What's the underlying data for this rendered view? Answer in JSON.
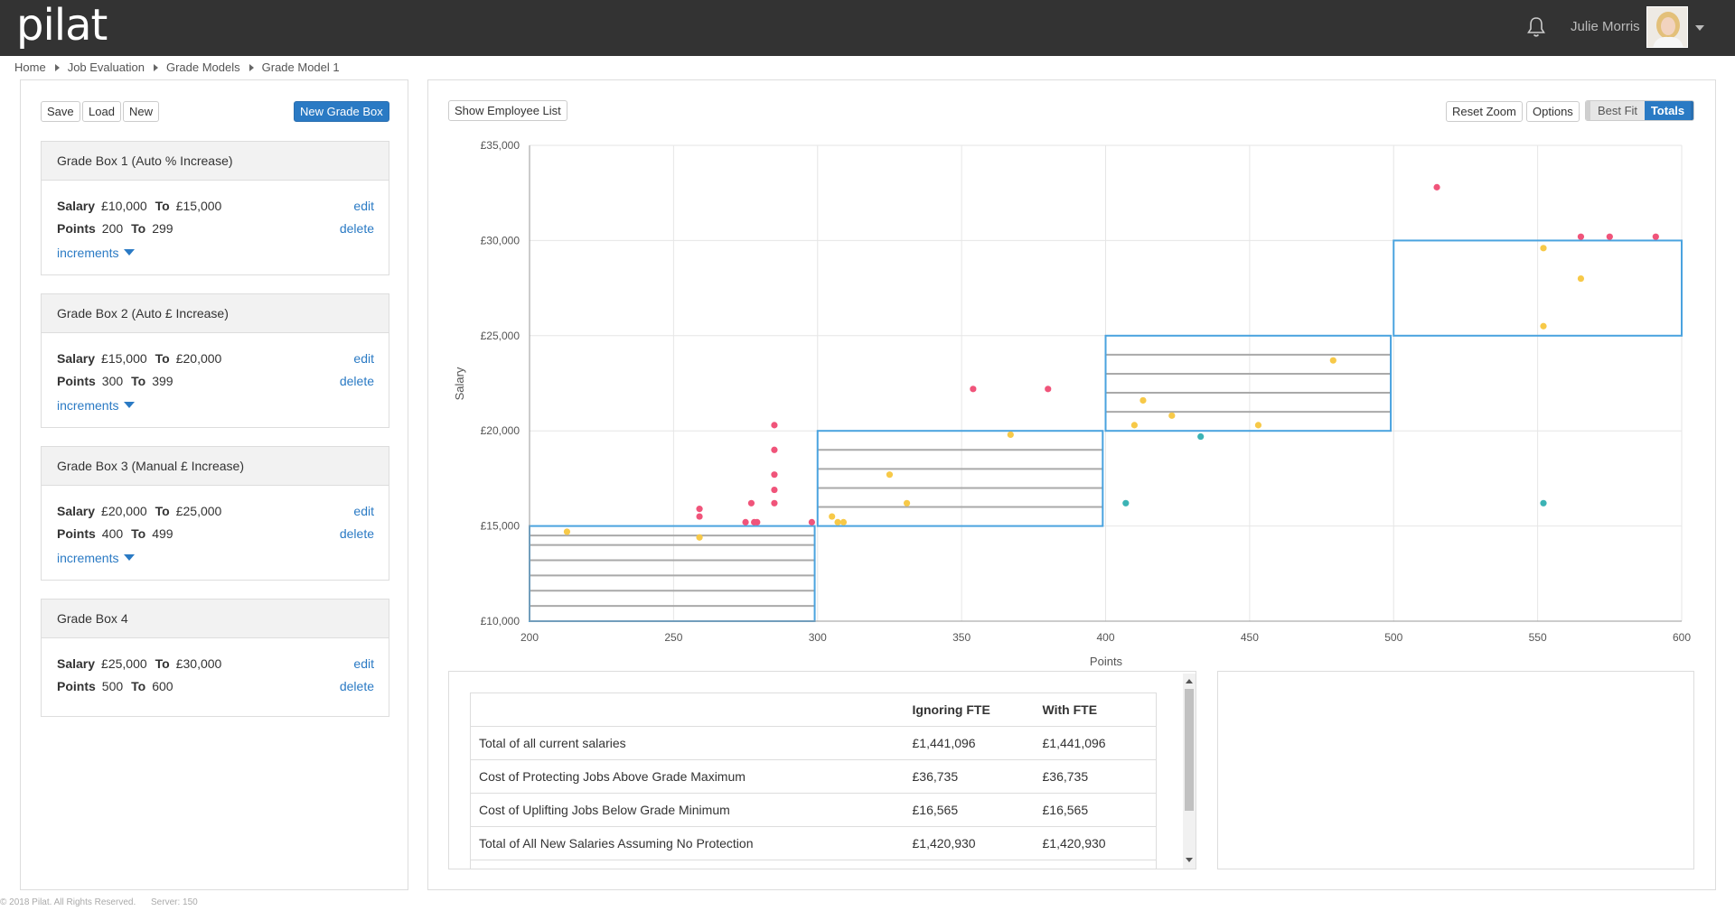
{
  "app": {
    "logo": "pilat"
  },
  "header": {
    "user_name": "Julie Morris",
    "bell_icon": "bell-icon",
    "caret_icon": "caret-down-icon"
  },
  "breadcrumb": [
    "Home",
    "Job Evaluation",
    "Grade Models",
    "Grade Model 1"
  ],
  "left_toolbar": {
    "save": "Save",
    "load": "Load",
    "new": "New",
    "new_grade_box": "New Grade Box"
  },
  "grade_boxes": [
    {
      "title": "Grade Box 1 (Auto % Increase)",
      "salary_from": "£10,000",
      "salary_to": "£15,000",
      "points_from": "200",
      "points_to": "299",
      "has_increments": true
    },
    {
      "title": "Grade Box 2 (Auto £ Increase)",
      "salary_from": "£15,000",
      "salary_to": "£20,000",
      "points_from": "300",
      "points_to": "399",
      "has_increments": true
    },
    {
      "title": "Grade Box 3 (Manual £ Increase)",
      "salary_from": "£20,000",
      "salary_to": "£25,000",
      "points_from": "400",
      "points_to": "499",
      "has_increments": true
    },
    {
      "title": "Grade Box 4",
      "salary_from": "£25,000",
      "salary_to": "£30,000",
      "points_from": "500",
      "points_to": "600",
      "has_increments": false
    }
  ],
  "labels": {
    "salary": "Salary",
    "points": "Points",
    "to": "To",
    "edit": "edit",
    "delete": "delete",
    "increments": "increments"
  },
  "main_toolbar": {
    "show_employee_list": "Show Employee List",
    "reset_zoom": "Reset Zoom",
    "options": "Options",
    "best_fit": "Best Fit",
    "totals": "Totals"
  },
  "colors": {
    "accent": "#2a7ac4",
    "box_stroke": "#4aa3df",
    "pink": "#f0547a",
    "yellow": "#f7c948",
    "teal": "#3bb3b5"
  },
  "chart_data": {
    "type": "scatter",
    "xlabel": "Points",
    "ylabel": "Salary",
    "xlim": [
      200,
      600
    ],
    "ylim": [
      10000,
      35000
    ],
    "x_ticks": [
      "200",
      "250",
      "300",
      "350",
      "400",
      "450",
      "500",
      "550",
      "600"
    ],
    "y_ticks": [
      "£10,000",
      "£15,000",
      "£20,000",
      "£25,000",
      "£30,000",
      "£35,000"
    ],
    "grid": true,
    "grade_boxes": [
      {
        "x": [
          200,
          299
        ],
        "y": [
          10000,
          15000
        ],
        "increments": [
          10000,
          10800,
          11600,
          12400,
          13200,
          14000,
          14500
        ]
      },
      {
        "x": [
          300,
          399
        ],
        "y": [
          15000,
          20000
        ],
        "increments": [
          16000,
          17000,
          18000,
          19000
        ]
      },
      {
        "x": [
          400,
          499
        ],
        "y": [
          20000,
          25000
        ],
        "increments": [
          21000,
          22000,
          23000,
          24000
        ]
      },
      {
        "x": [
          500,
          600
        ],
        "y": [
          25000,
          30000
        ],
        "increments": []
      }
    ],
    "series": [
      {
        "color": "#f0547a",
        "points": [
          [
            259,
            15500
          ],
          [
            259,
            15900
          ],
          [
            275,
            15200
          ],
          [
            277,
            16200
          ],
          [
            278,
            15200
          ],
          [
            279,
            15200
          ],
          [
            285,
            16200
          ],
          [
            285,
            16900
          ],
          [
            285,
            17700
          ],
          [
            285,
            19000
          ],
          [
            285,
            20300
          ],
          [
            298,
            15200
          ],
          [
            354,
            22200
          ],
          [
            380,
            22200
          ],
          [
            515,
            32800
          ],
          [
            565,
            30200
          ],
          [
            575,
            30200
          ],
          [
            591,
            30200
          ]
        ]
      },
      {
        "color": "#f7c948",
        "points": [
          [
            213,
            14700
          ],
          [
            259,
            14400
          ],
          [
            305,
            15500
          ],
          [
            307,
            15200
          ],
          [
            309,
            15200
          ],
          [
            325,
            17700
          ],
          [
            331,
            16200
          ],
          [
            367,
            19800
          ],
          [
            410,
            20300
          ],
          [
            413,
            21600
          ],
          [
            423,
            20800
          ],
          [
            453,
            20300
          ],
          [
            479,
            23700
          ],
          [
            552,
            29600
          ],
          [
            552,
            25500
          ],
          [
            565,
            28000
          ]
        ]
      },
      {
        "color": "#3bb3b5",
        "points": [
          [
            407,
            16200
          ],
          [
            433,
            19700
          ],
          [
            552,
            16200
          ]
        ]
      }
    ]
  },
  "totals_table": {
    "headers": [
      "",
      "Ignoring FTE",
      "With FTE"
    ],
    "rows": [
      [
        "Total of all current salaries",
        "£1,441,096",
        "£1,441,096"
      ],
      [
        "Cost of Protecting Jobs Above Grade Maximum",
        "£36,735",
        "£36,735"
      ],
      [
        "Cost of Uplifting Jobs Below Grade Minimum",
        "£16,565",
        "£16,565"
      ],
      [
        "Total of All New Salaries Assuming No Protection",
        "£1,420,930",
        "£1,420,930"
      ]
    ]
  },
  "footer": {
    "copyright": "© 2018 Pilat. All Rights Reserved.",
    "server": "Server: 150"
  }
}
